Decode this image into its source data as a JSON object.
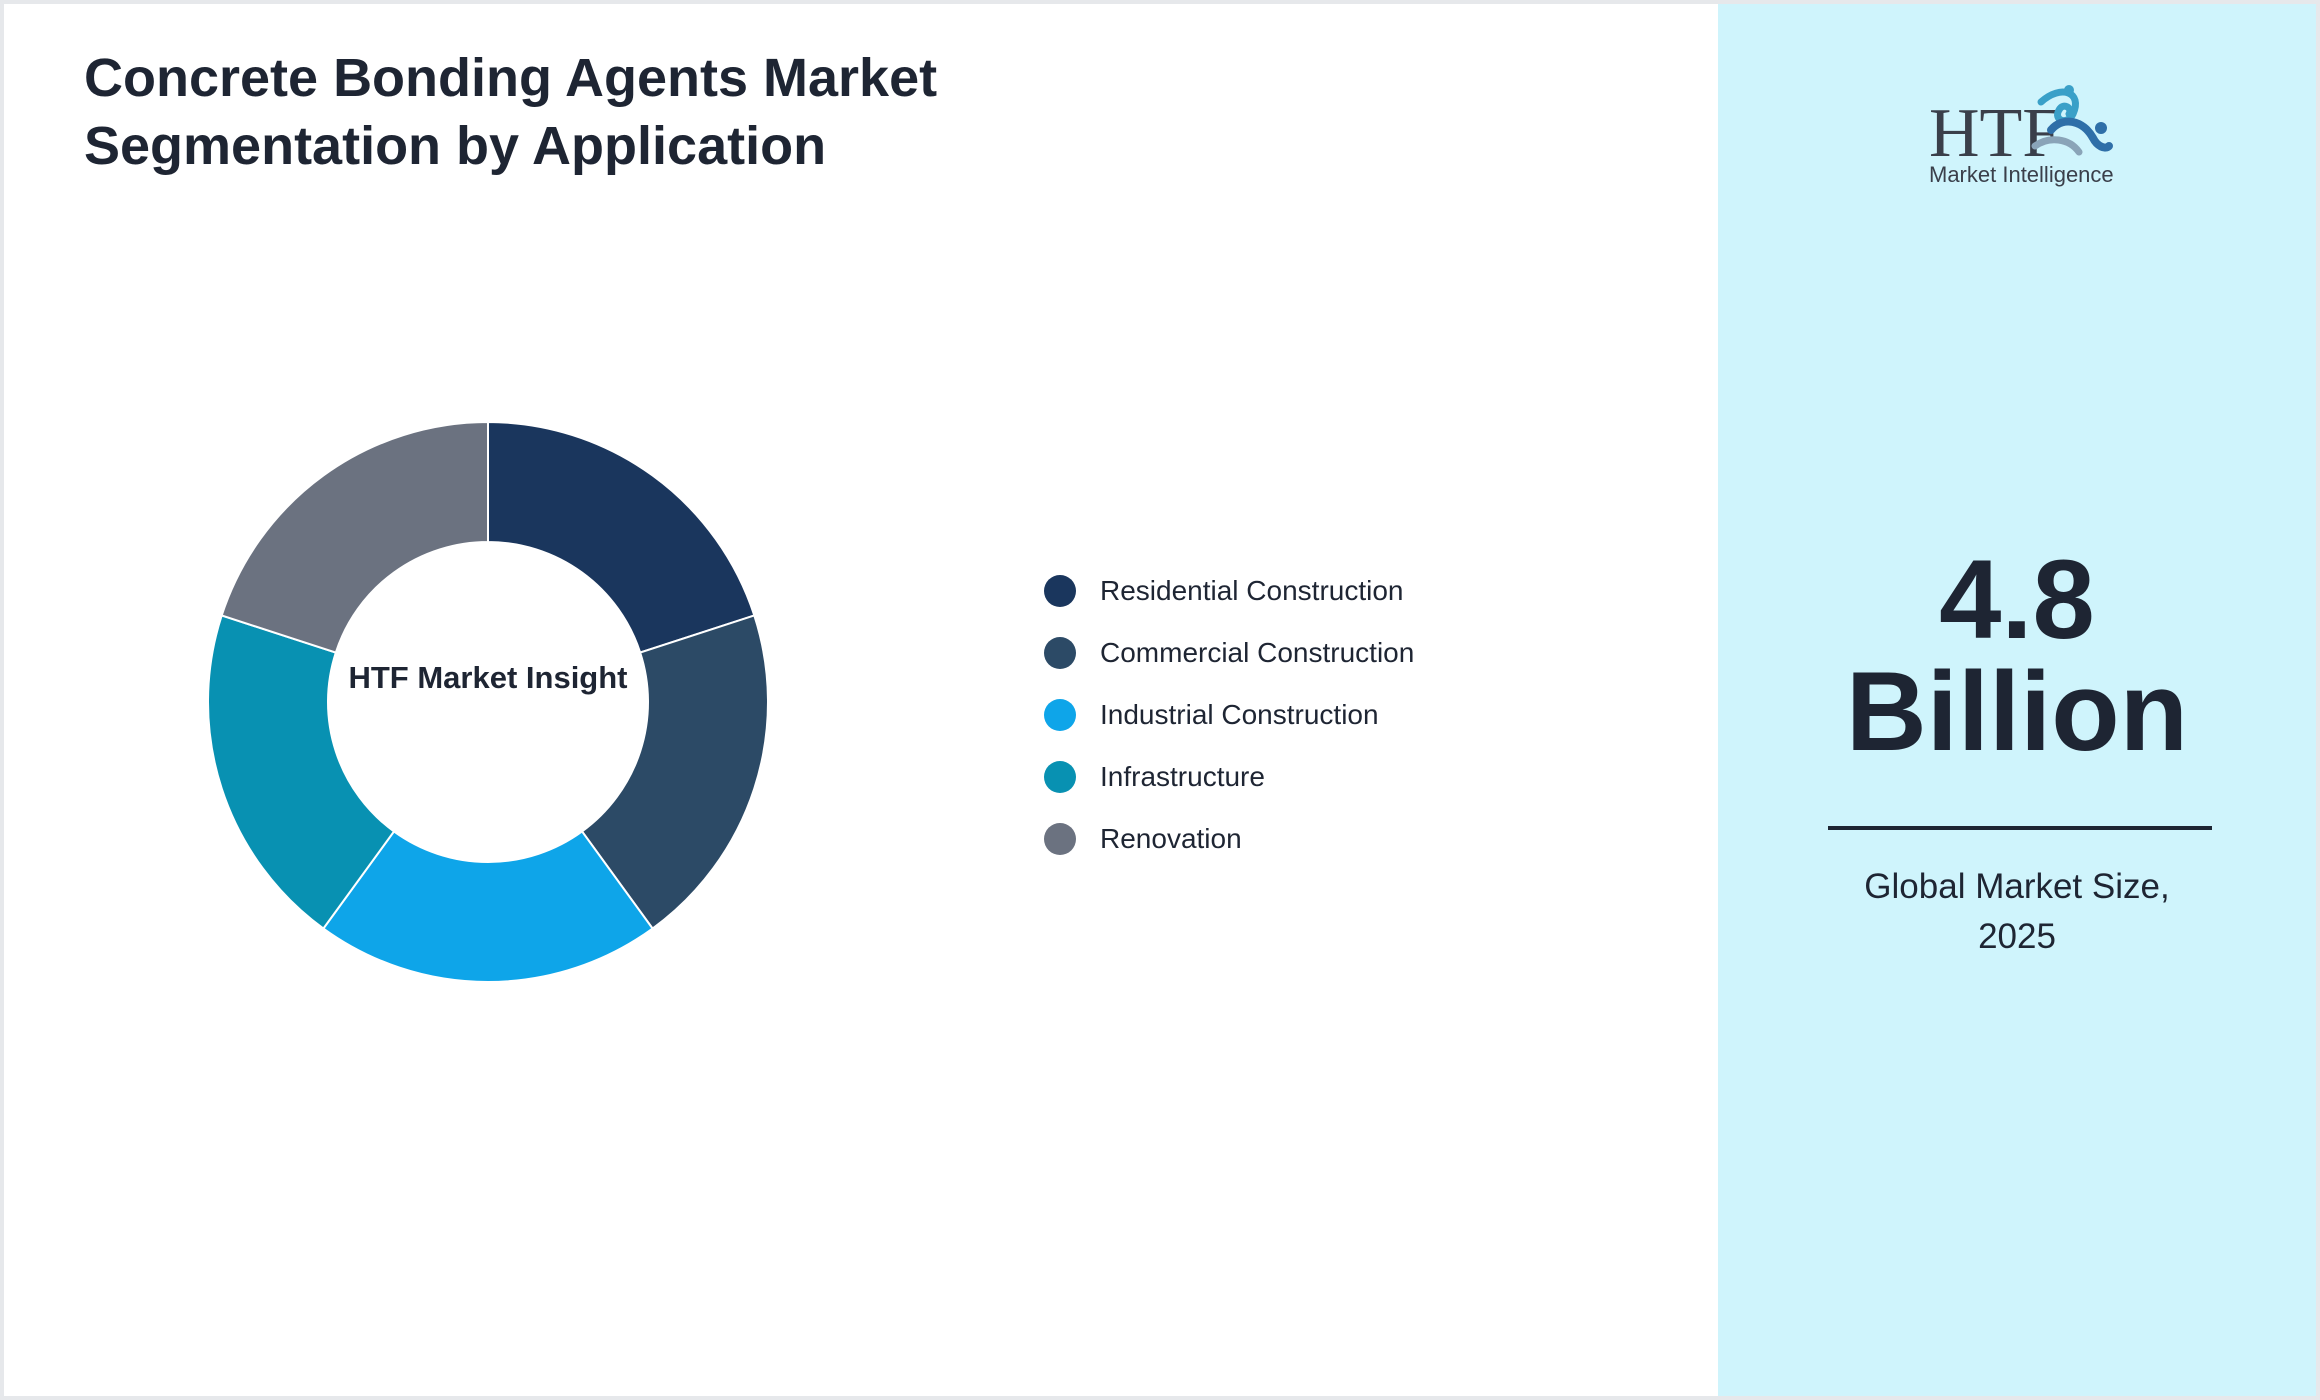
{
  "title": "Concrete Bonding Agents Market Segmentation by Application",
  "chart_data": {
    "type": "pie",
    "style": "donut",
    "title": "Concrete Bonding Agents Market Segmentation by Application",
    "center_label": "HTF Market Insight",
    "legend_placement": "right",
    "slices": [
      {
        "label": "Residential Construction",
        "value": 20,
        "color": "#1a365d"
      },
      {
        "label": "Commercial Construction",
        "value": 20,
        "color": "#2c4a66"
      },
      {
        "label": "Industrial Construction",
        "value": 20,
        "color": "#0ea5e9"
      },
      {
        "label": "Infrastructure",
        "value": 20,
        "color": "#0891b2"
      },
      {
        "label": "Renovation",
        "value": 20,
        "color": "#6b7280"
      }
    ]
  },
  "side_panel": {
    "logo_letters": "HTF",
    "logo_subtitle": "Market Intelligence",
    "value": "4.8",
    "unit": "Billion",
    "caption_line1": "Global Market Size,",
    "caption_line2": "2025",
    "background": "#cff4fc"
  }
}
